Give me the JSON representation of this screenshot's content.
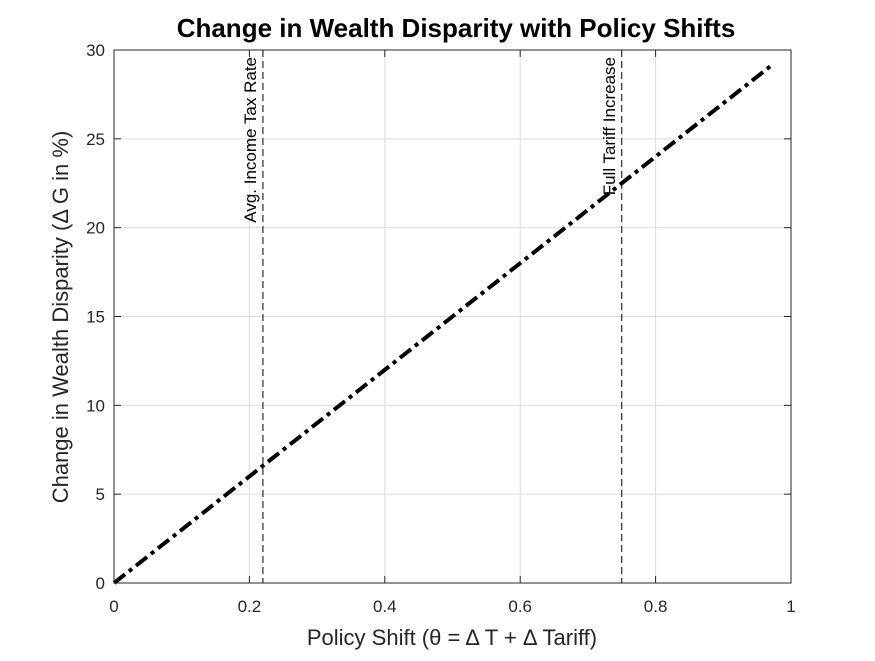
{
  "chart_data": {
    "type": "line",
    "title": "Change in Wealth Disparity with Policy Shifts",
    "xlabel": "Policy Shift (θ = Δ T + Δ Tariff)",
    "ylabel": "Change in Wealth Disparity (Δ G in %)",
    "xlim": [
      0,
      1
    ],
    "ylim": [
      0,
      30
    ],
    "xticks": [
      0,
      0.2,
      0.4,
      0.6,
      0.8,
      1
    ],
    "xtick_labels": [
      "0",
      "0.2",
      "0.4",
      "0.6",
      "0.8",
      "1"
    ],
    "yticks": [
      0,
      5,
      10,
      15,
      20,
      25,
      30
    ],
    "ytick_labels": [
      "0",
      "5",
      "10",
      "15",
      "20",
      "25",
      "30"
    ],
    "grid": true,
    "series": [
      {
        "style": "dash-dot",
        "color": "#000000",
        "x": [
          0,
          0.97
        ],
        "y": [
          0,
          29.1
        ]
      }
    ],
    "annotations": [
      {
        "label": "Avg. Income Tax Rate",
        "x": 0.22,
        "style": "dashed vertical line"
      },
      {
        "label": "Full Tariff Increase",
        "x": 0.75,
        "style": "dashed vertical line"
      }
    ]
  }
}
